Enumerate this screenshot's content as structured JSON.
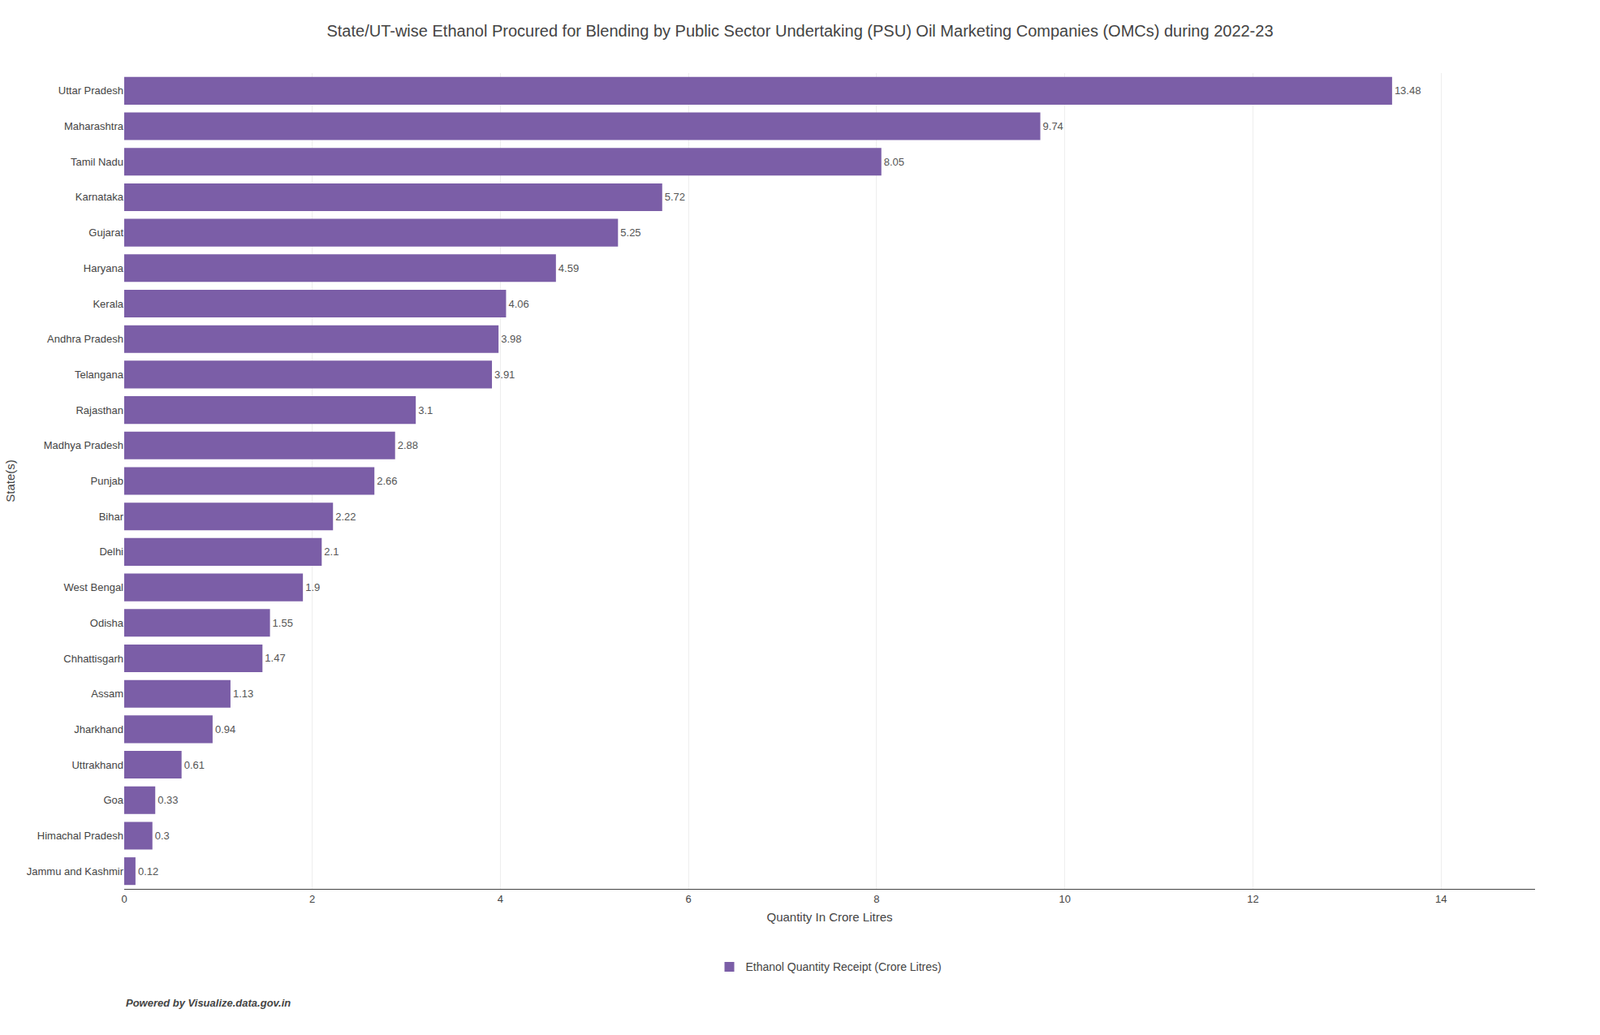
{
  "chart_data": {
    "type": "bar",
    "orientation": "horizontal",
    "title": "State/UT-wise Ethanol Procured for Blending by Public Sector Undertaking (PSU) Oil Marketing Companies (OMCs) during 2022-23",
    "xlabel": "Quantity In Crore Litres",
    "ylabel": "State(s)",
    "categories": [
      "Uttar Pradesh",
      "Maharashtra",
      "Tamil Nadu",
      "Karnataka",
      "Gujarat",
      "Haryana",
      "Kerala",
      "Andhra Pradesh",
      "Telangana",
      "Rajasthan",
      "Madhya Pradesh",
      "Punjab",
      "Bihar",
      "Delhi",
      "West Bengal",
      "Odisha",
      "Chhattisgarh",
      "Assam",
      "Jharkhand",
      "Uttrakhand",
      "Goa",
      "Himachal Pradesh",
      "Jammu and Kashmir"
    ],
    "series": [
      {
        "name": "Ethanol Quantity Receipt (Crore Litres)",
        "color": "#7B5EA7",
        "values": [
          13.48,
          9.74,
          8.05,
          5.72,
          5.25,
          4.59,
          4.06,
          3.98,
          3.91,
          3.1,
          2.88,
          2.66,
          2.22,
          2.1,
          1.9,
          1.55,
          1.47,
          1.13,
          0.94,
          0.61,
          0.33,
          0.3,
          0.12
        ]
      }
    ],
    "xlim": [
      0,
      15
    ],
    "xticks": [
      0,
      2,
      4,
      6,
      8,
      10,
      12,
      14
    ],
    "grid": true,
    "data_labels": true,
    "legend": "bottom",
    "annotations": [
      "Powered by Visualize.data.gov.in"
    ]
  }
}
